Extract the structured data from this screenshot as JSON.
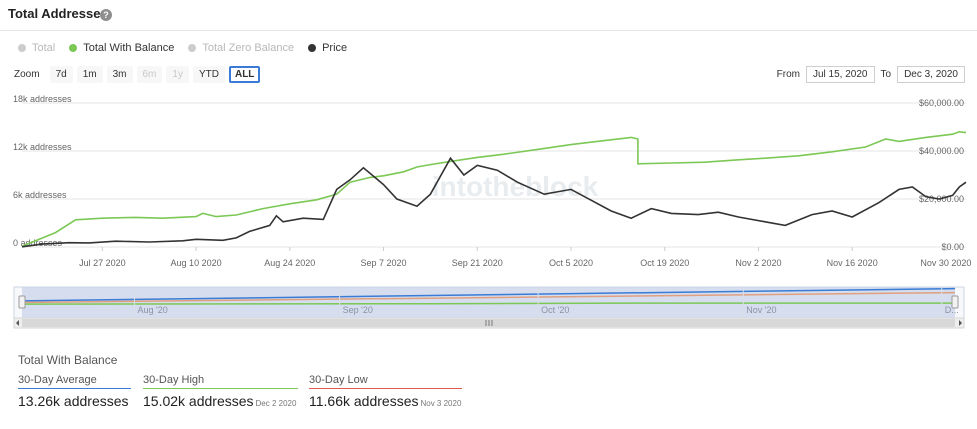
{
  "header": {
    "title": "Total Addresses"
  },
  "legend": [
    {
      "label": "Total",
      "color": "#cccccc",
      "active": false
    },
    {
      "label": "Total With Balance",
      "color": "#7cc855",
      "active": true
    },
    {
      "label": "Total Zero Balance",
      "color": "#cccccc",
      "active": false
    },
    {
      "label": "Price",
      "color": "#333333",
      "active": true
    }
  ],
  "zoom": {
    "label": "Zoom",
    "buttons": [
      {
        "label": "7d",
        "state": "normal"
      },
      {
        "label": "1m",
        "state": "normal"
      },
      {
        "label": "3m",
        "state": "normal"
      },
      {
        "label": "6m",
        "state": "disabled"
      },
      {
        "label": "1y",
        "state": "disabled"
      },
      {
        "label": "YTD",
        "state": "normal"
      },
      {
        "label": "ALL",
        "state": "active"
      }
    ]
  },
  "range": {
    "from_label": "From",
    "from_value": "Jul 15, 2020",
    "to_label": "To",
    "to_value": "Dec 3, 2020"
  },
  "watermark": "intotheblock",
  "chart_data": {
    "type": "line",
    "xlabel": "",
    "ylabel": "",
    "x_ticks": [
      "Jul 27 2020",
      "Aug 10 2020",
      "Aug 24 2020",
      "Sep 7 2020",
      "Sep 21 2020",
      "Oct 5 2020",
      "Oct 19 2020",
      "Nov 2 2020",
      "Nov 16 2020",
      "Nov 30 2020"
    ],
    "y_left_ticks": [
      "0 addresses",
      "6k addresses",
      "12k addresses",
      "18k addresses"
    ],
    "y_left_lim": [
      0,
      18000
    ],
    "y_right_ticks": [
      "$0.00",
      "$20,000.00",
      "$40,000.00",
      "$60,000.00"
    ],
    "y_right_lim": [
      0,
      60000
    ],
    "grid": true,
    "legend_position": "top-left",
    "series": [
      {
        "name": "Total With Balance",
        "axis": "left",
        "color": "#7cc855",
        "points": [
          [
            "2020-07-15",
            100
          ],
          [
            "2020-07-20",
            1800
          ],
          [
            "2020-07-23",
            3400
          ],
          [
            "2020-07-27",
            3600
          ],
          [
            "2020-08-01",
            3700
          ],
          [
            "2020-08-05",
            3600
          ],
          [
            "2020-08-10",
            3800
          ],
          [
            "2020-08-11",
            4200
          ],
          [
            "2020-08-13",
            3800
          ],
          [
            "2020-08-16",
            4000
          ],
          [
            "2020-08-20",
            4800
          ],
          [
            "2020-08-24",
            5400
          ],
          [
            "2020-08-28",
            5900
          ],
          [
            "2020-08-31",
            6600
          ],
          [
            "2020-09-02",
            8100
          ],
          [
            "2020-09-05",
            8700
          ],
          [
            "2020-09-07",
            8900
          ],
          [
            "2020-09-10",
            9400
          ],
          [
            "2020-09-12",
            10000
          ],
          [
            "2020-09-14",
            10300
          ],
          [
            "2020-09-17",
            10700
          ],
          [
            "2020-09-21",
            11200
          ],
          [
            "2020-09-25",
            11600
          ],
          [
            "2020-09-30",
            12200
          ],
          [
            "2020-10-05",
            12800
          ],
          [
            "2020-10-10",
            13300
          ],
          [
            "2020-10-14",
            13700
          ],
          [
            "2020-10-15",
            13500
          ],
          [
            "2020-10-15",
            10400
          ],
          [
            "2020-10-20",
            10500
          ],
          [
            "2020-10-25",
            10600
          ],
          [
            "2020-10-30",
            10900
          ],
          [
            "2020-11-03",
            11100
          ],
          [
            "2020-11-08",
            11400
          ],
          [
            "2020-11-13",
            11900
          ],
          [
            "2020-11-18",
            12500
          ],
          [
            "2020-11-21",
            13500
          ],
          [
            "2020-11-23",
            13200
          ],
          [
            "2020-11-27",
            13700
          ],
          [
            "2020-12-01",
            14100
          ],
          [
            "2020-12-02",
            14400
          ],
          [
            "2020-12-03",
            14300
          ]
        ]
      },
      {
        "name": "Price",
        "axis": "right",
        "color": "#333333",
        "points": [
          [
            "2020-07-15",
            100
          ],
          [
            "2020-07-18",
            1200
          ],
          [
            "2020-07-22",
            1800
          ],
          [
            "2020-07-25",
            1700
          ],
          [
            "2020-07-29",
            2400
          ],
          [
            "2020-08-03",
            2100
          ],
          [
            "2020-08-08",
            2600
          ],
          [
            "2020-08-10",
            3200
          ],
          [
            "2020-08-14",
            2800
          ],
          [
            "2020-08-16",
            3800
          ],
          [
            "2020-08-18",
            6500
          ],
          [
            "2020-08-21",
            9000
          ],
          [
            "2020-08-22",
            13000
          ],
          [
            "2020-08-23",
            10500
          ],
          [
            "2020-08-26",
            12000
          ],
          [
            "2020-08-29",
            11500
          ],
          [
            "2020-08-31",
            24000
          ],
          [
            "2020-09-02",
            28000
          ],
          [
            "2020-09-04",
            33000
          ],
          [
            "2020-09-07",
            26000
          ],
          [
            "2020-09-09",
            20000
          ],
          [
            "2020-09-12",
            17000
          ],
          [
            "2020-09-14",
            22000
          ],
          [
            "2020-09-17",
            37000
          ],
          [
            "2020-09-19",
            30000
          ],
          [
            "2020-09-21",
            34000
          ],
          [
            "2020-09-24",
            32000
          ],
          [
            "2020-09-27",
            27000
          ],
          [
            "2020-10-01",
            22000
          ],
          [
            "2020-10-05",
            24000
          ],
          [
            "2020-10-08",
            19500
          ],
          [
            "2020-10-11",
            15000
          ],
          [
            "2020-10-14",
            12000
          ],
          [
            "2020-10-17",
            16000
          ],
          [
            "2020-10-20",
            14000
          ],
          [
            "2020-10-24",
            13500
          ],
          [
            "2020-10-27",
            14500
          ],
          [
            "2020-10-30",
            12500
          ],
          [
            "2020-11-03",
            10500
          ],
          [
            "2020-11-06",
            9000
          ],
          [
            "2020-11-10",
            13500
          ],
          [
            "2020-11-13",
            15000
          ],
          [
            "2020-11-16",
            12500
          ],
          [
            "2020-11-20",
            18500
          ],
          [
            "2020-11-23",
            24000
          ],
          [
            "2020-11-25",
            25000
          ],
          [
            "2020-11-27",
            21000
          ],
          [
            "2020-11-29",
            20000
          ],
          [
            "2020-12-01",
            21500
          ],
          [
            "2020-12-02",
            25000
          ],
          [
            "2020-12-03",
            27000
          ]
        ]
      }
    ],
    "navigator": {
      "ticks": [
        "Aug '20",
        "Sep '20",
        "Oct '20",
        "Nov '20",
        "D..."
      ],
      "series": [
        {
          "name": "Total",
          "color": "#3a7bd5",
          "points": [
            [
              "2020-07-15",
              0.55
            ],
            [
              "2020-12-03",
              0.95
            ]
          ]
        },
        {
          "name": "Total Zero Balance",
          "color": "#e0a080",
          "points": [
            [
              "2020-07-15",
              0.5
            ],
            [
              "2020-12-03",
              0.82
            ]
          ]
        },
        {
          "name": "Total With Balance",
          "color": "#7cc855",
          "points": [
            [
              "2020-07-15",
              0.45
            ],
            [
              "2020-09-15",
              0.46
            ],
            [
              "2020-10-15",
              0.48
            ],
            [
              "2020-12-03",
              0.48
            ]
          ]
        }
      ]
    }
  },
  "summary": {
    "title": "Total With Balance",
    "stats": [
      {
        "label": "30-Day Average",
        "value": "13.26k addresses",
        "date": "",
        "underline": "#3a7bd5"
      },
      {
        "label": "30-Day High",
        "value": "15.02k addresses",
        "date": "Dec 2 2020",
        "underline": "#7cc855"
      },
      {
        "label": "30-Day Low",
        "value": "11.66k addresses",
        "date": "Nov 3 2020",
        "underline": "#e05a4f"
      }
    ]
  }
}
